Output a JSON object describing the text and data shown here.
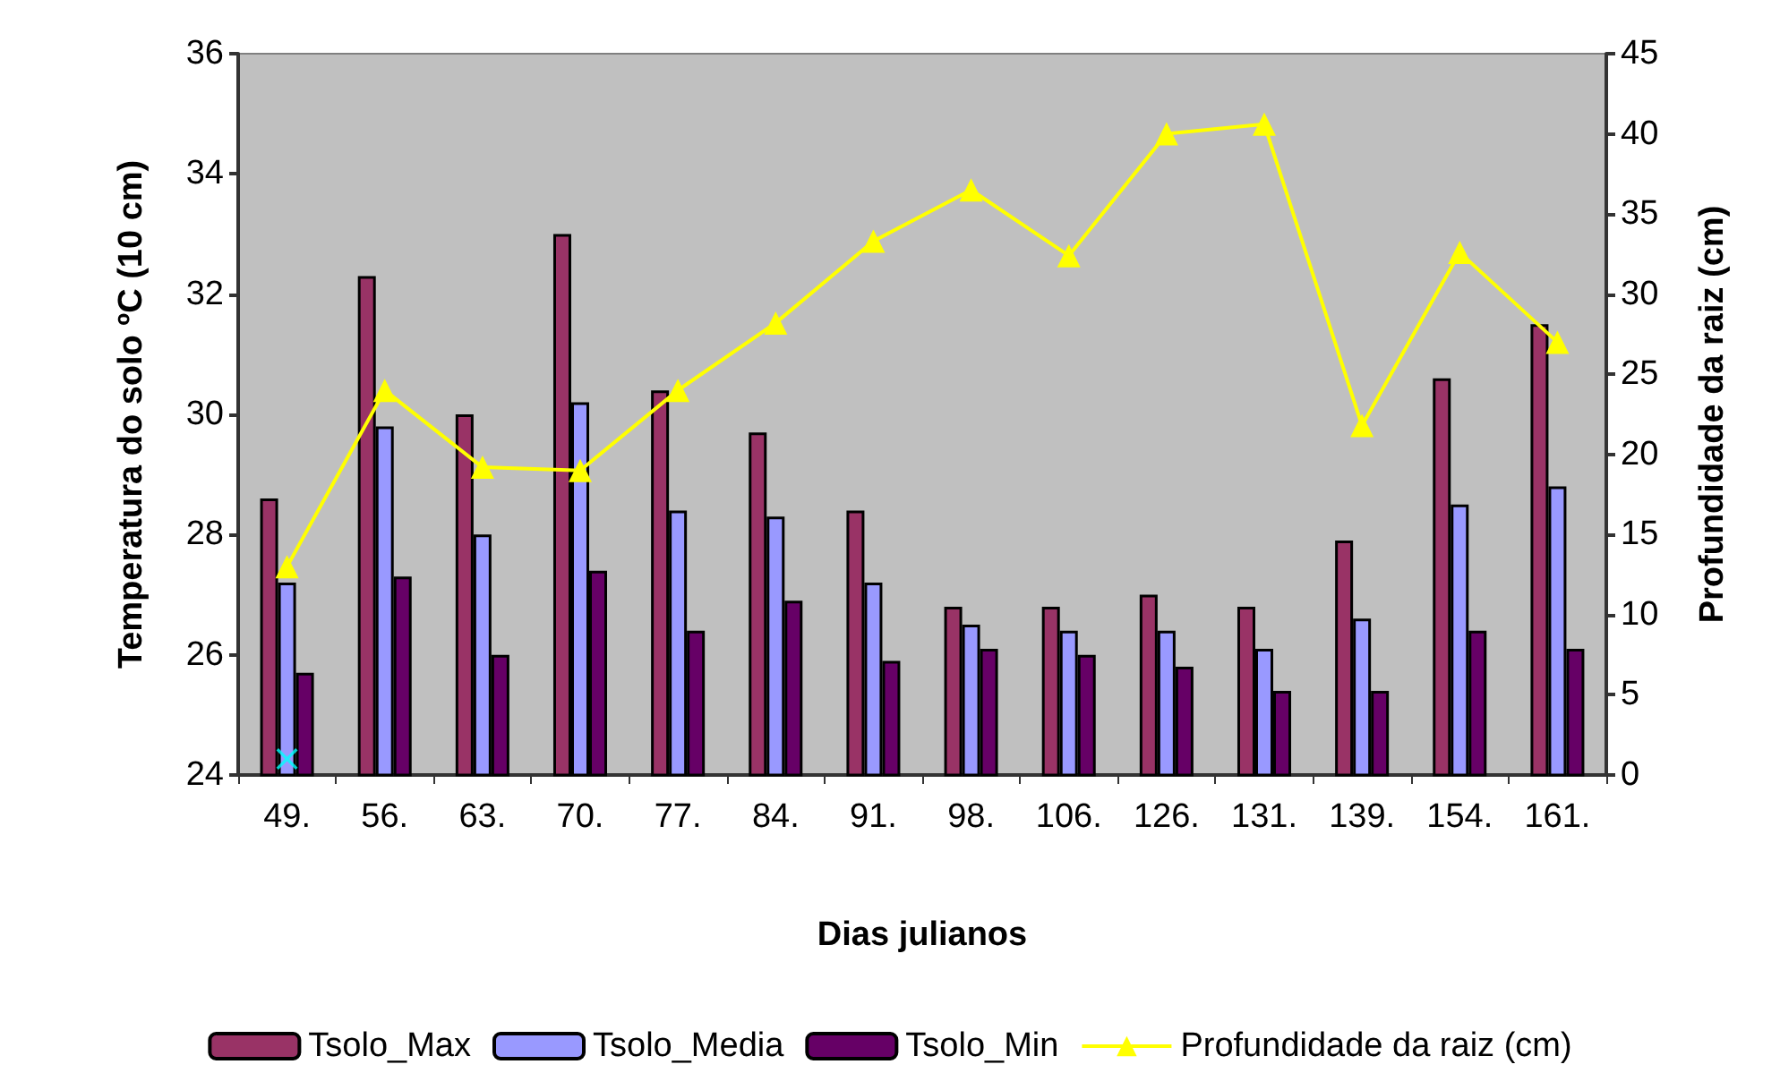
{
  "chart_data": {
    "type": "bar",
    "xlabel": "Dias julianos",
    "ylabel": "Temperatura do solo ºC (10 cm)",
    "y2label": "Profundidade da raiz (cm)",
    "categories": [
      "49.",
      "56.",
      "63.",
      "70.",
      "77.",
      "84.",
      "91.",
      "98.",
      "106.",
      "126.",
      "131.",
      "139.",
      "154.",
      "161."
    ],
    "series": [
      {
        "name": "Tsolo_Max",
        "color": "#993366",
        "values": [
          28.6,
          32.3,
          30.0,
          33.0,
          30.4,
          29.7,
          28.4,
          26.8,
          26.8,
          27.0,
          26.8,
          27.9,
          30.6,
          31.5
        ]
      },
      {
        "name": "Tsolo_Media",
        "color": "#9999ff",
        "values": [
          27.2,
          29.8,
          28.0,
          30.2,
          28.4,
          28.3,
          27.2,
          26.5,
          26.4,
          26.4,
          26.1,
          26.6,
          28.5,
          28.8
        ]
      },
      {
        "name": "Tsolo_Min",
        "color": "#660066",
        "values": [
          25.7,
          27.3,
          26.0,
          27.4,
          26.4,
          26.9,
          25.9,
          26.1,
          26.0,
          25.8,
          25.4,
          25.4,
          26.4,
          26.1
        ]
      },
      {
        "name": "Profundidade da raiz (cm)",
        "type": "line",
        "axis": "y2",
        "marker": "triangle",
        "color": "#ffff00",
        "values": [
          13,
          24,
          19.2,
          19,
          24,
          28.2,
          33.3,
          36.5,
          32.4,
          40,
          40.6,
          21.8,
          32.6,
          27
        ]
      },
      {
        "type": "scatter",
        "axis": "y2",
        "marker": "cross",
        "color": "#00ffff",
        "values": [
          1,
          null,
          null,
          null,
          null,
          null,
          null,
          null,
          null,
          null,
          null,
          null,
          null,
          null
        ]
      }
    ],
    "ylim": [
      24,
      36
    ],
    "yticks": [
      24,
      26,
      28,
      30,
      32,
      34,
      36
    ],
    "y2lim": [
      0,
      45
    ],
    "y2ticks": [
      0,
      5,
      10,
      15,
      20,
      25,
      30,
      35,
      40,
      45
    ],
    "grid": false,
    "legend": "bottom"
  }
}
